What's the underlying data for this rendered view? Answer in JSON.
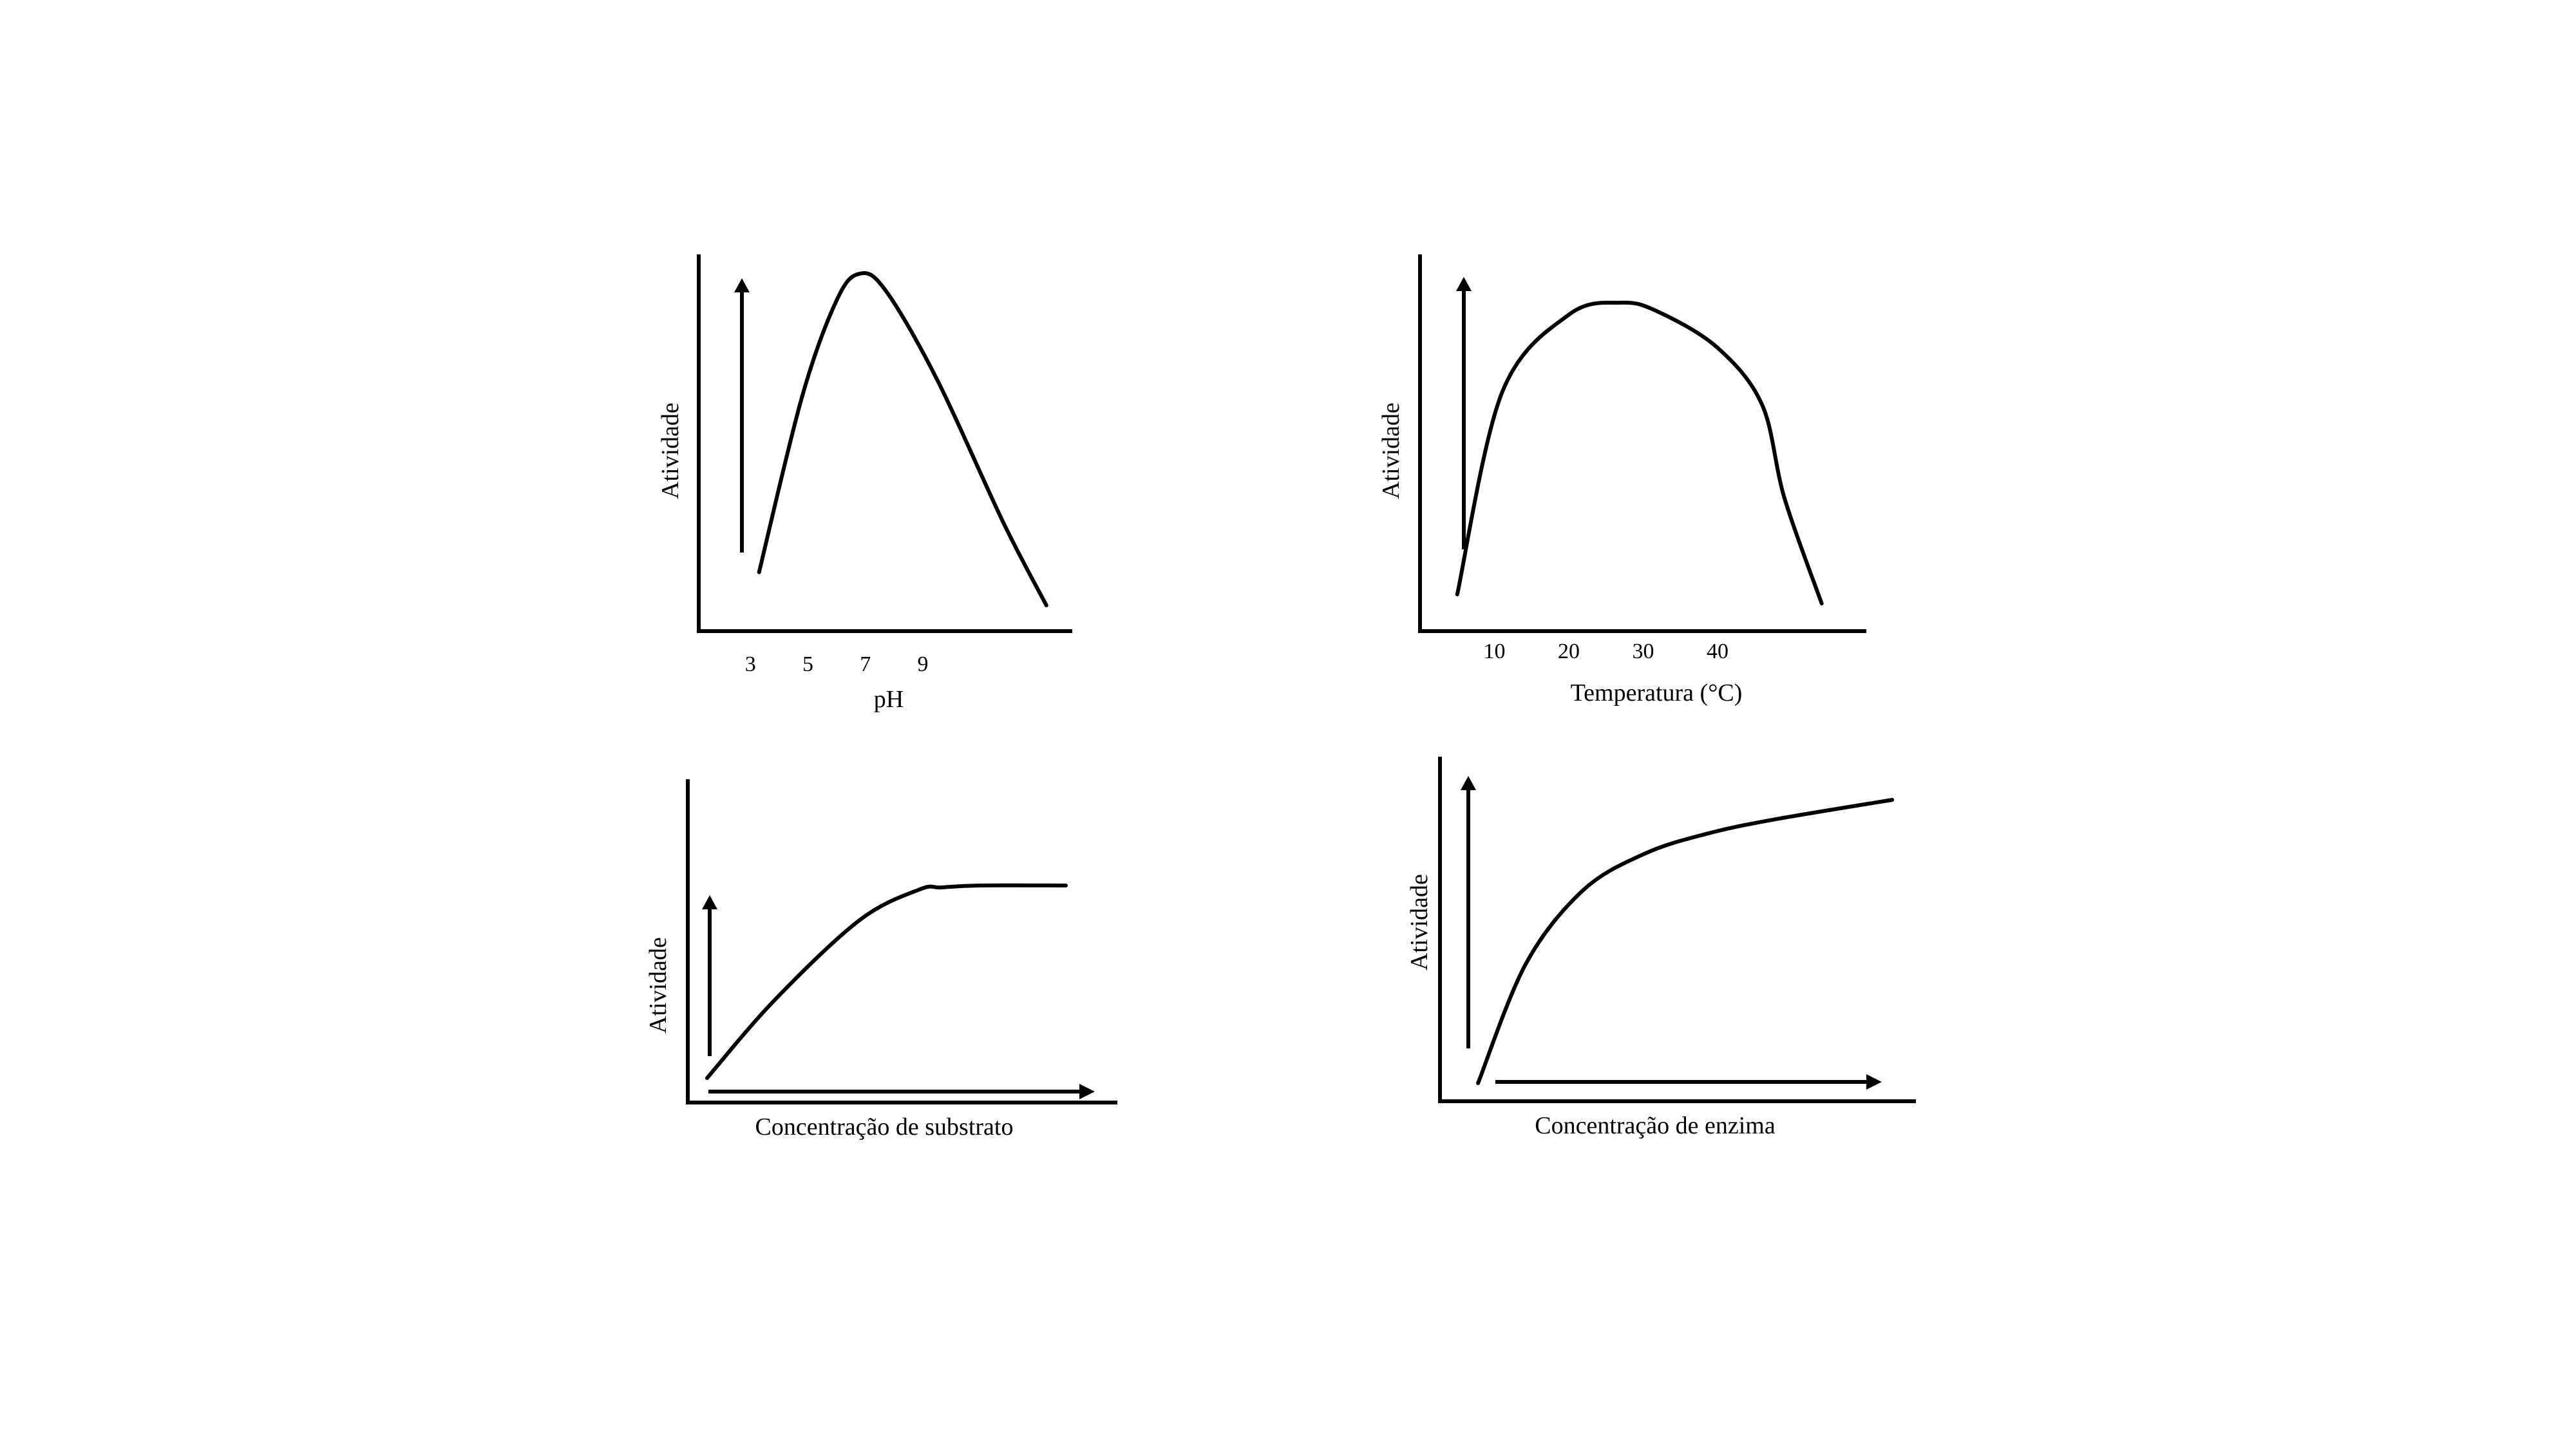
{
  "colors": {
    "background": "#ffffff",
    "ink": "#000000"
  },
  "chart_data": [
    {
      "type": "line",
      "title": "",
      "xlabel": "pH",
      "ylabel": "Atividade",
      "x_ticks": [
        3,
        5,
        7,
        9
      ],
      "xlim": [
        1.2,
        14.2
      ],
      "ylim": [
        0,
        1
      ],
      "grid": false,
      "y_axis_arrow": true,
      "x_axis_arrow": false,
      "series": [
        {
          "x": [
            3.3,
            4.8,
            6.0,
            6.8,
            7.7,
            9.5,
            11.8,
            13.3
          ],
          "y": [
            0.1,
            0.63,
            0.92,
            1.0,
            0.95,
            0.68,
            0.25,
            0.0
          ]
        }
      ]
    },
    {
      "type": "line",
      "title": "",
      "xlabel": "Temperatura (°C)",
      "ylabel": "Atividade",
      "x_ticks": [
        10,
        20,
        30,
        40
      ],
      "xlim": [
        0,
        60
      ],
      "ylim": [
        0,
        1
      ],
      "grid": false,
      "y_axis_arrow": true,
      "x_axis_arrow": false,
      "series": [
        {
          "x": [
            5,
            11,
            20,
            27,
            32,
            40,
            46,
            49,
            54
          ],
          "y": [
            0.03,
            0.7,
            0.96,
            1.0,
            0.97,
            0.85,
            0.66,
            0.35,
            0.0
          ]
        }
      ]
    },
    {
      "type": "line",
      "title": "",
      "xlabel": "Concentração de substrato",
      "ylabel": "Atividade",
      "x_ticks": [],
      "xlim": [
        0,
        10
      ],
      "ylim": [
        0,
        1
      ],
      "grid": false,
      "y_axis_arrow": true,
      "x_axis_arrow": true,
      "series": [
        {
          "x": [
            0.45,
            2.0,
            4.0,
            5.4,
            5.9,
            6.8,
            8.8
          ],
          "y": [
            0.0,
            0.4,
            0.82,
            0.98,
            0.99,
            1.0,
            1.0
          ]
        }
      ]
    },
    {
      "type": "line",
      "title": "",
      "xlabel": "Concentração de enzima",
      "ylabel": "Atividade",
      "x_ticks": [],
      "xlim": [
        0,
        10
      ],
      "ylim": [
        0,
        1
      ],
      "grid": false,
      "y_axis_arrow": true,
      "x_axis_arrow": true,
      "series": [
        {
          "x": [
            0.8,
            1.8,
            3.0,
            4.3,
            5.6,
            7.0,
            9.5
          ],
          "y": [
            0.0,
            0.42,
            0.68,
            0.81,
            0.88,
            0.93,
            1.0
          ]
        }
      ]
    }
  ]
}
